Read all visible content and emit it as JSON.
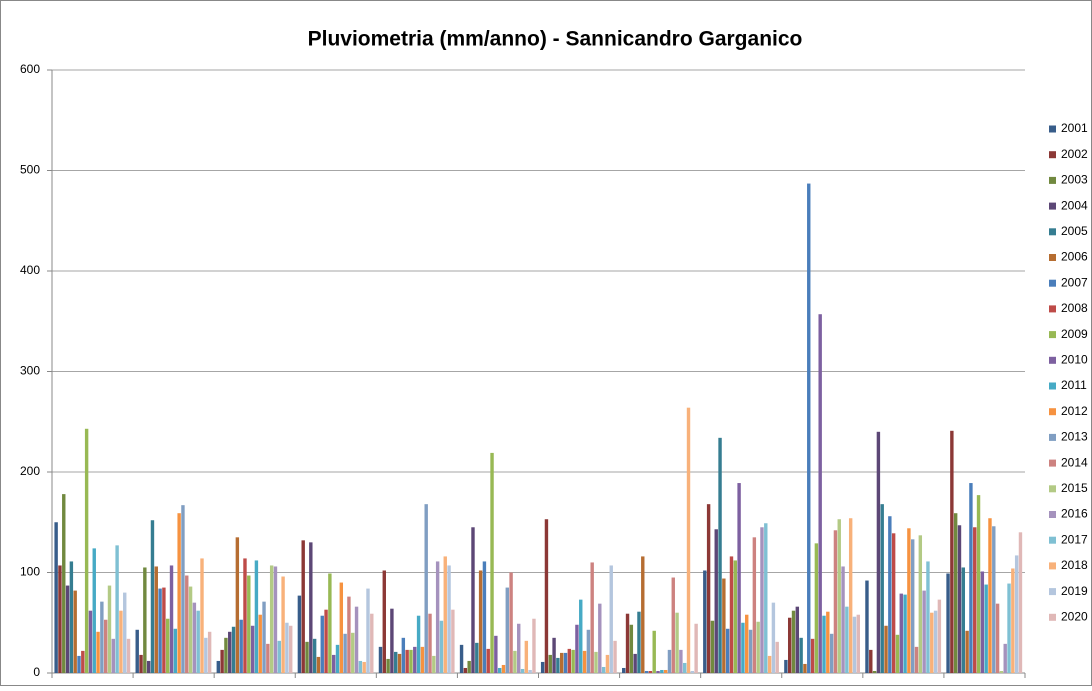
{
  "chart_data": {
    "type": "bar",
    "title": "Pluviometria (mm/anno) - Sannicandro Garganico",
    "categories": [
      null,
      null,
      null,
      null,
      null,
      null,
      null,
      null,
      null,
      null,
      null,
      null
    ],
    "series": [
      {
        "name": "2001",
        "color": "#385d8a",
        "values": [
          150,
          43,
          12,
          77,
          26,
          28,
          11,
          5,
          102,
          13,
          92,
          99
        ]
      },
      {
        "name": "2002",
        "color": "#8c3836",
        "values": [
          107,
          18,
          23,
          132,
          102,
          5,
          153,
          59,
          168,
          55,
          23,
          241
        ]
      },
      {
        "name": "2003",
        "color": "#71893f",
        "values": [
          178,
          105,
          35,
          31,
          14,
          12,
          18,
          48,
          52,
          62,
          2,
          159
        ]
      },
      {
        "name": "2004",
        "color": "#5c4776",
        "values": [
          87,
          12,
          41,
          130,
          64,
          145,
          35,
          19,
          143,
          66,
          240,
          147
        ]
      },
      {
        "name": "2005",
        "color": "#357d91",
        "values": [
          111,
          152,
          46,
          34,
          21,
          30,
          15,
          61,
          234,
          35,
          168,
          105
        ]
      },
      {
        "name": "2006",
        "color": "#b66d31",
        "values": [
          82,
          106,
          135,
          16,
          19,
          102,
          20,
          116,
          94,
          9,
          47,
          42
        ]
      },
      {
        "name": "2007",
        "color": "#4a7ebb",
        "values": [
          17,
          84,
          53,
          57,
          35,
          111,
          20,
          2,
          44,
          487,
          156,
          189
        ]
      },
      {
        "name": "2008",
        "color": "#be4b48",
        "values": [
          22,
          85,
          114,
          63,
          23,
          24,
          24,
          2,
          116,
          34,
          139,
          145
        ]
      },
      {
        "name": "2009",
        "color": "#98b954",
        "values": [
          243,
          54,
          97,
          99,
          23,
          219,
          23,
          42,
          112,
          129,
          38,
          177
        ]
      },
      {
        "name": "2010",
        "color": "#7d60a0",
        "values": [
          62,
          107,
          47,
          18,
          26,
          37,
          48,
          2,
          189,
          357,
          79,
          101
        ]
      },
      {
        "name": "2011",
        "color": "#46aac5",
        "values": [
          124,
          44,
          112,
          28,
          57,
          5,
          73,
          3,
          50,
          57,
          78,
          88
        ]
      },
      {
        "name": "2012",
        "color": "#f69240",
        "values": [
          41,
          159,
          58,
          90,
          26,
          8,
          22,
          3,
          58,
          61,
          144,
          154
        ]
      },
      {
        "name": "2013",
        "color": "#809ec2",
        "values": [
          71,
          167,
          71,
          39,
          168,
          85,
          43,
          23,
          43,
          39,
          133,
          146
        ]
      },
      {
        "name": "2014",
        "color": "#cd8280",
        "values": [
          53,
          97,
          29,
          76,
          59,
          100,
          110,
          95,
          135,
          142,
          26,
          69
        ]
      },
      {
        "name": "2015",
        "color": "#b3ca85",
        "values": [
          87,
          86,
          107,
          40,
          17,
          22,
          21,
          60,
          51,
          153,
          137,
          2
        ]
      },
      {
        "name": "2016",
        "color": "#a592bd",
        "values": [
          34,
          70,
          106,
          66,
          111,
          49,
          69,
          23,
          145,
          106,
          82,
          29
        ]
      },
      {
        "name": "2017",
        "color": "#7fc0d3",
        "values": [
          127,
          62,
          32,
          12,
          52,
          4,
          6,
          10,
          149,
          66,
          111,
          89
        ]
      },
      {
        "name": "2018",
        "color": "#f8b17a",
        "values": [
          62,
          114,
          96,
          11,
          116,
          32,
          18,
          264,
          17,
          154,
          60,
          104
        ]
      },
      {
        "name": "2019",
        "color": "#b4c6de",
        "values": [
          80,
          35,
          50,
          84,
          107,
          3,
          107,
          2,
          70,
          56,
          62,
          117
        ]
      },
      {
        "name": "2020",
        "color": "#e0b8b7",
        "values": [
          34,
          41,
          47,
          59,
          63,
          54,
          32,
          49,
          31,
          58,
          73,
          140
        ]
      }
    ],
    "ylim": [
      0,
      600
    ],
    "yticks": [
      0,
      100,
      200,
      300,
      400,
      500,
      600
    ],
    "grid": true
  }
}
